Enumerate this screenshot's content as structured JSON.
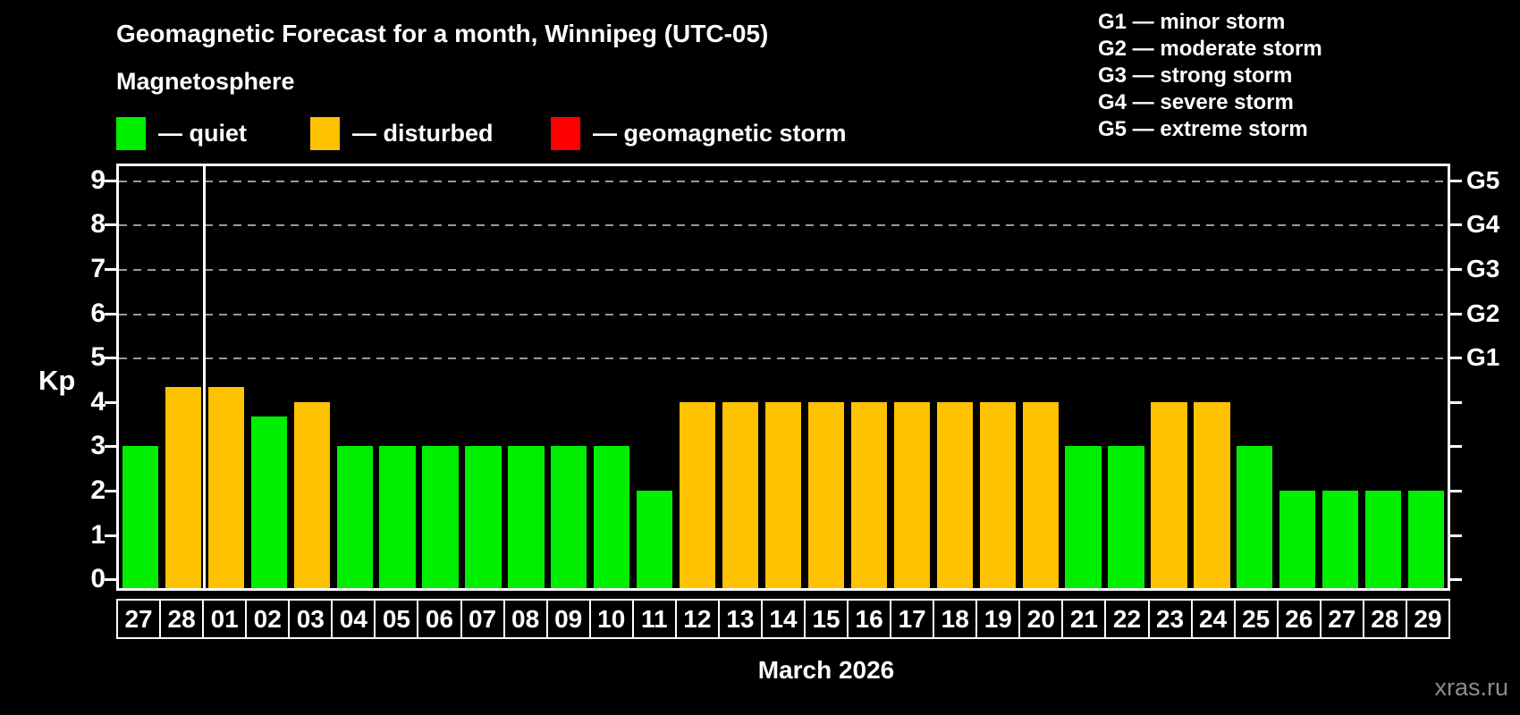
{
  "title": "Geomagnetic Forecast for a month, Winnipeg (UTC-05)",
  "subtitle": "Magnetosphere",
  "legend": {
    "items": [
      {
        "key": "quiet",
        "label": "— quiet",
        "color": "#00ee00",
        "x": 130
      },
      {
        "key": "disturbed",
        "label": "— disturbed",
        "color": "#ffc200",
        "x": 347
      },
      {
        "key": "storm",
        "label": "— geomagnetic storm",
        "color": "#ff0000",
        "x": 616
      }
    ]
  },
  "storm_scale_legend": [
    "G1 — minor storm",
    "G2 — moderate storm",
    "G3 — strong storm",
    "G4 — severe storm",
    "G5 — extreme storm"
  ],
  "y_axis": {
    "label": "Kp",
    "ticks": [
      0,
      1,
      2,
      3,
      4,
      5,
      6,
      7,
      8,
      9
    ]
  },
  "right_axis": {
    "labels": [
      {
        "label": "G5",
        "kp": 9
      },
      {
        "label": "G4",
        "kp": 8
      },
      {
        "label": "G3",
        "kp": 7
      },
      {
        "label": "G2",
        "kp": 6
      },
      {
        "label": "G1",
        "kp": 5
      }
    ]
  },
  "x_axis": {
    "title": "March 2026"
  },
  "watermark": "xras.ru",
  "colors": {
    "quiet": "#00ee00",
    "disturbed": "#ffc200",
    "storm": "#ff0000",
    "grid": "#999999",
    "watermark": "#8c8c8c"
  },
  "chart_data": {
    "type": "bar",
    "title": "Geomagnetic Forecast for a month, Winnipeg (UTC-05)",
    "xlabel": "March 2026",
    "ylabel": "Kp",
    "ylim": [
      0,
      9
    ],
    "yticks": [
      0,
      1,
      2,
      3,
      4,
      5,
      6,
      7,
      8,
      9
    ],
    "grid": "horizontal dashed lines at Kp 5,6,7,8,9 (G1–G5 levels)",
    "legend_position": "top",
    "categories": [
      "27",
      "28",
      "01",
      "02",
      "03",
      "04",
      "05",
      "06",
      "07",
      "08",
      "09",
      "10",
      "11",
      "12",
      "13",
      "14",
      "15",
      "16",
      "17",
      "18",
      "19",
      "20",
      "21",
      "22",
      "23",
      "24",
      "25",
      "26",
      "27",
      "28",
      "29"
    ],
    "values": [
      3,
      4.33,
      4.33,
      3.67,
      4,
      3,
      3,
      3,
      3,
      3,
      3,
      3,
      2,
      4,
      4,
      4,
      4,
      4,
      4,
      4,
      4,
      4,
      3,
      3,
      4,
      4,
      3,
      2,
      2,
      2,
      2
    ],
    "statuses": [
      "quiet",
      "disturbed",
      "disturbed",
      "quiet",
      "disturbed",
      "quiet",
      "quiet",
      "quiet",
      "quiet",
      "quiet",
      "quiet",
      "quiet",
      "quiet",
      "disturbed",
      "disturbed",
      "disturbed",
      "disturbed",
      "disturbed",
      "disturbed",
      "disturbed",
      "disturbed",
      "disturbed",
      "quiet",
      "quiet",
      "disturbed",
      "disturbed",
      "quiet",
      "quiet",
      "quiet",
      "quiet",
      "quiet"
    ],
    "month_separator_after_index": 1,
    "right_axis_labels": [
      {
        "label": "G5",
        "kp": 9
      },
      {
        "label": "G4",
        "kp": 8
      },
      {
        "label": "G3",
        "kp": 7
      },
      {
        "label": "G2",
        "kp": 6
      },
      {
        "label": "G1",
        "kp": 5
      }
    ]
  }
}
